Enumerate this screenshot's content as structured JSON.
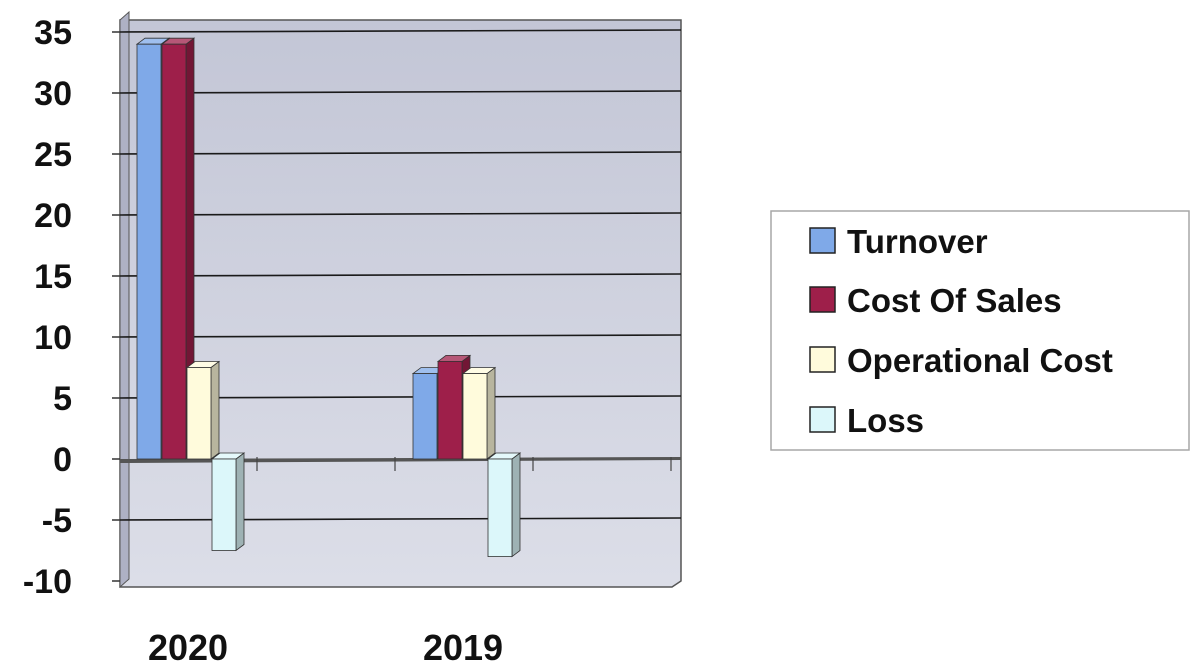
{
  "chart_data": {
    "type": "bar",
    "categories": [
      "2020",
      "2019"
    ],
    "series": [
      {
        "name": "Turnover",
        "values": [
          34,
          7
        ],
        "color": "#7FA9E8"
      },
      {
        "name": "Cost Of Sales",
        "values": [
          34,
          8
        ],
        "color": "#9E1F4A"
      },
      {
        "name": "Operational Cost",
        "values": [
          7.5,
          7
        ],
        "color": "#FFFBDC"
      },
      {
        "name": "Loss",
        "values": [
          -7.5,
          -8
        ],
        "color": "#DCF7FA"
      }
    ],
    "ylim": [
      -10,
      35
    ],
    "yticks": [
      "35",
      "30",
      "25",
      "20",
      "15",
      "10",
      "5",
      "0",
      "-5",
      "-10"
    ],
    "grid": true,
    "legend_position": "right",
    "plot_background": "#C8CBDA"
  }
}
